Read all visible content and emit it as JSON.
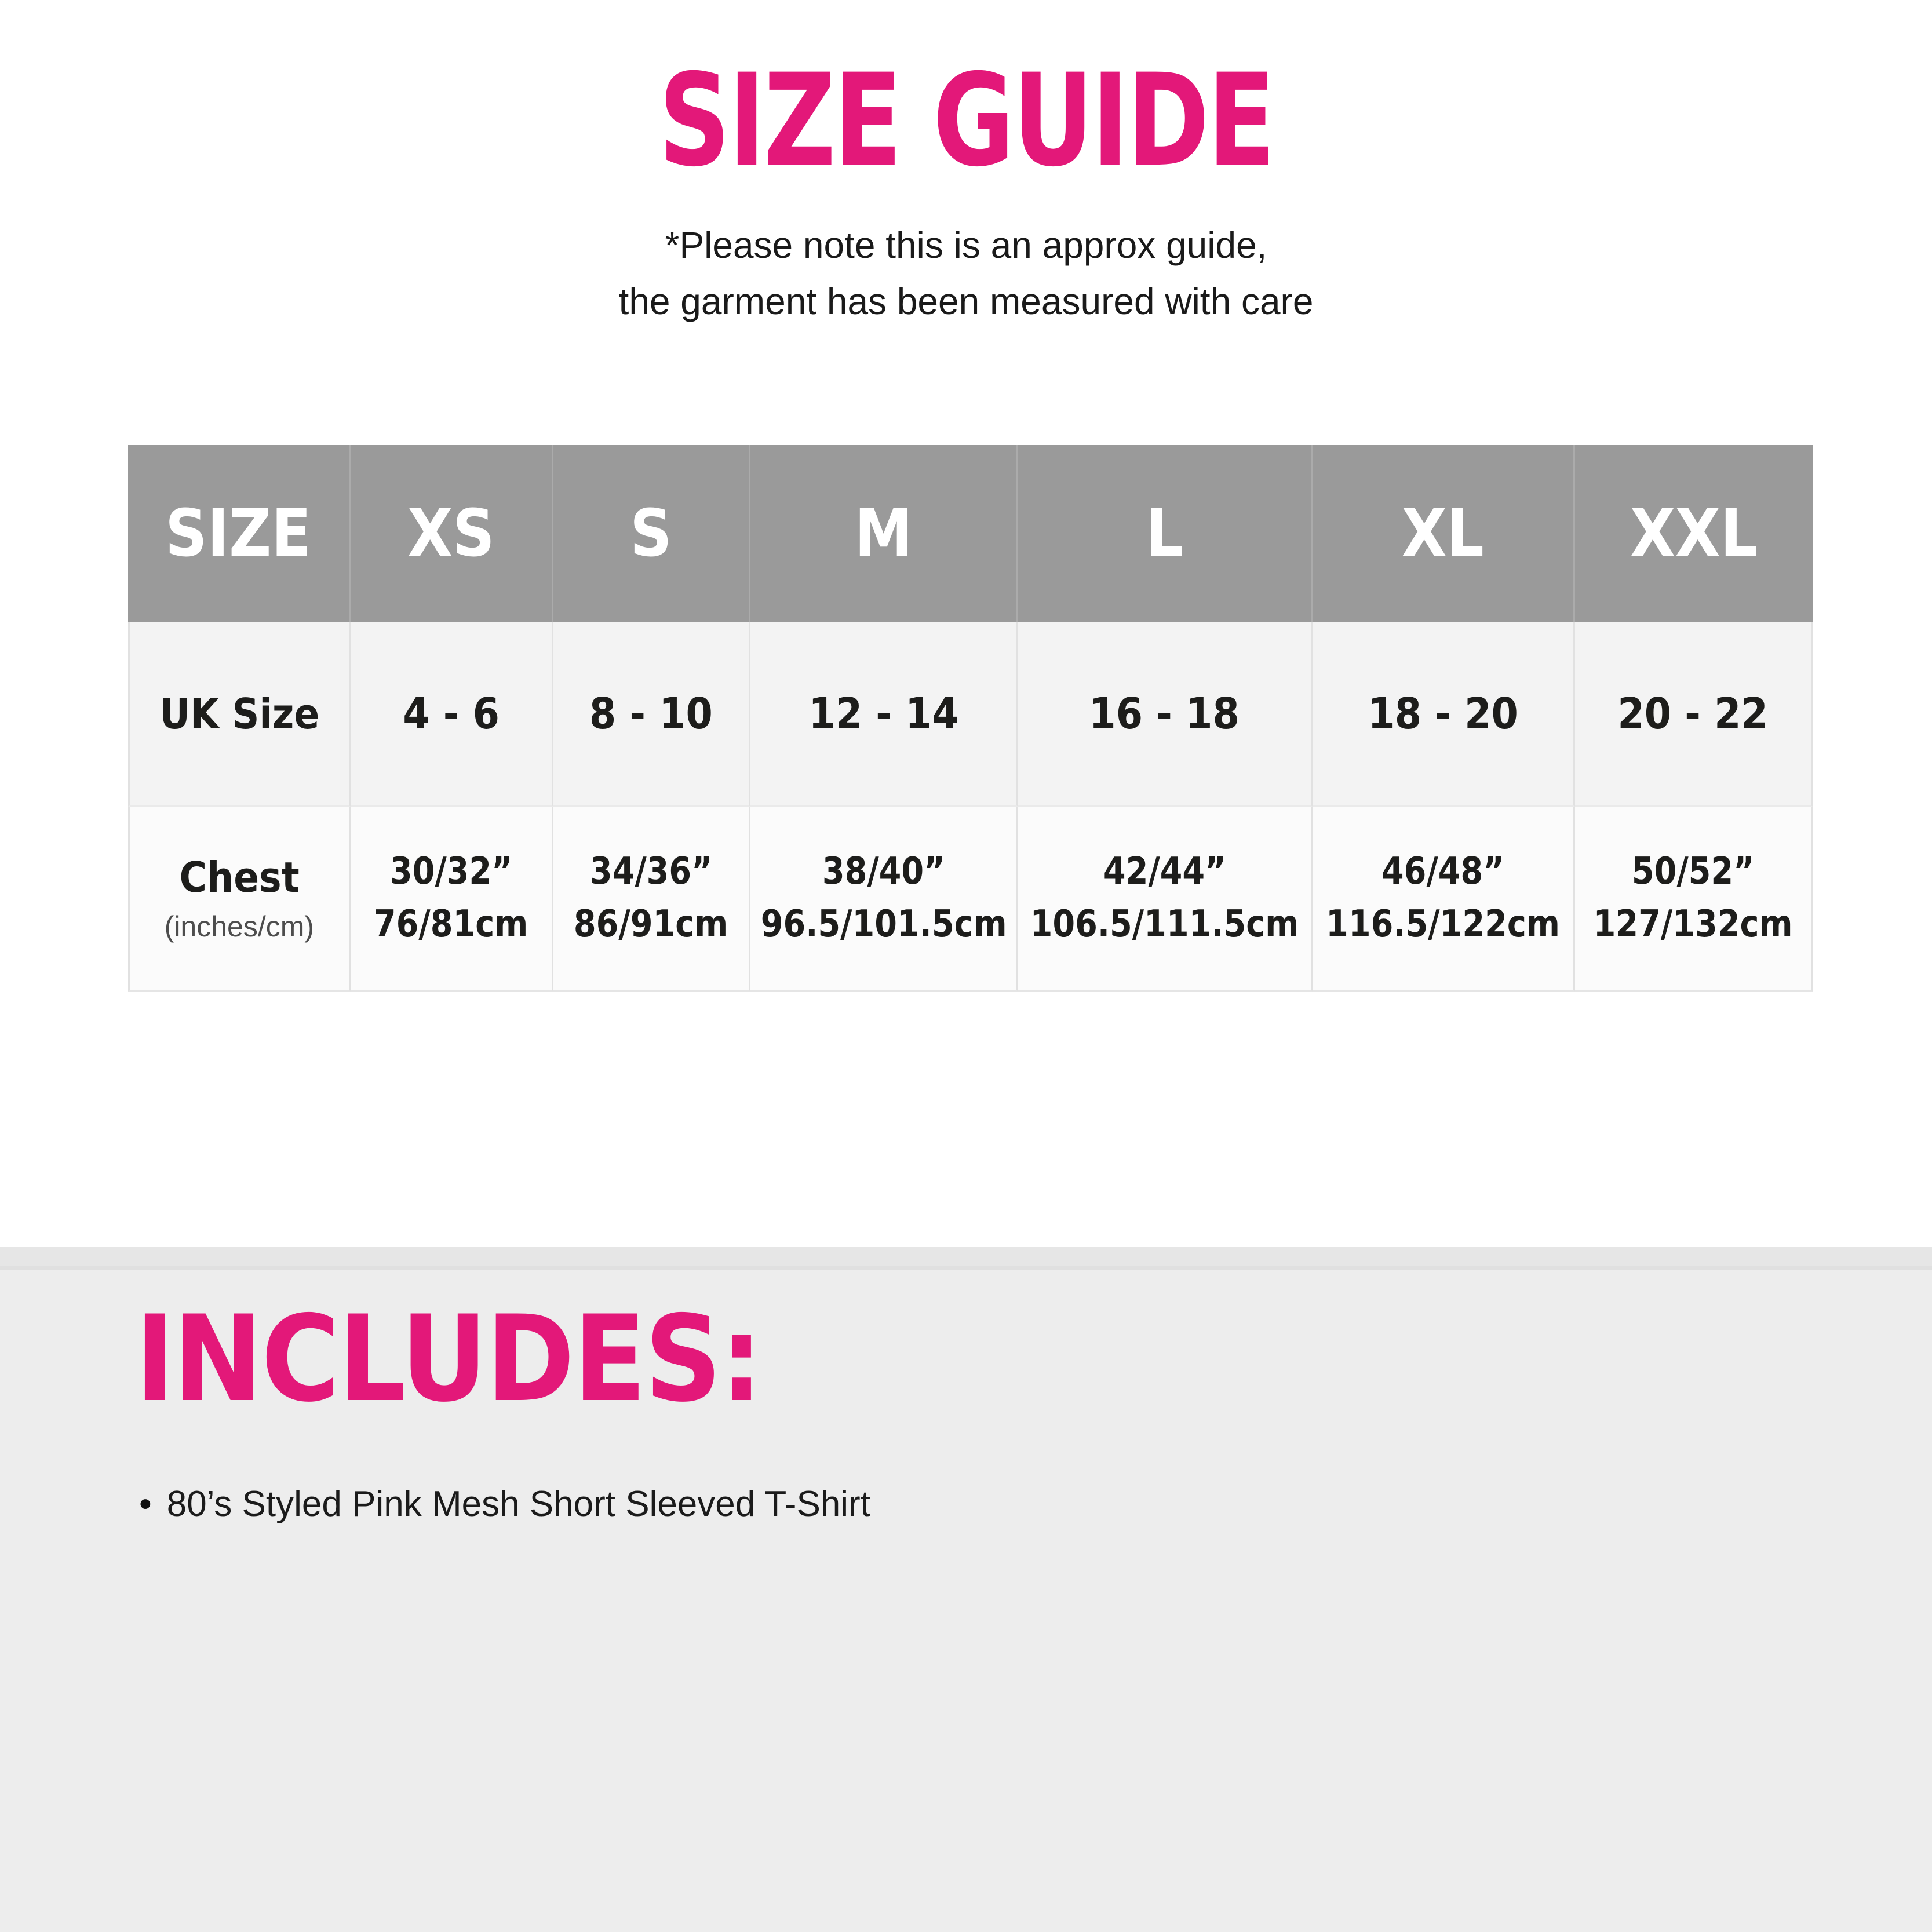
{
  "header": {
    "title": "SIZE GUIDE",
    "note_line1": "*Please note this is an approx guide,",
    "note_line2": "the garment has been measured with care"
  },
  "size_table": {
    "columns": [
      "SIZE",
      "XS",
      "S",
      "M",
      "L",
      "XL",
      "XXL"
    ],
    "uk_size_row": {
      "label": "UK Size",
      "values": [
        "4 - 6",
        "8 - 10",
        "12 - 14",
        "16 - 18",
        "18 - 20",
        "20 - 22"
      ]
    },
    "chest_row": {
      "label": "Chest",
      "unit_note": "(inches/cm)",
      "values": [
        {
          "inches": "30/32”",
          "cm": "76/81cm"
        },
        {
          "inches": "34/36”",
          "cm": "86/91cm"
        },
        {
          "inches": "38/40”",
          "cm": "96.5/101.5cm"
        },
        {
          "inches": "42/44”",
          "cm": "106.5/111.5cm"
        },
        {
          "inches": "46/48”",
          "cm": "116.5/122cm"
        },
        {
          "inches": "50/52”",
          "cm": "127/132cm"
        }
      ]
    }
  },
  "includes": {
    "heading": "INCLUDES:",
    "bullet": "•",
    "items": [
      "80’s Styled Pink Mesh Short Sleeved T-Shirt"
    ]
  },
  "colors": {
    "accent_pink": "#E31879",
    "table_header_bg": "#9A9A9A",
    "table_header_text": "#FFFFFF",
    "uk_size_row_bg": "#F3F3F3",
    "chest_row_bg": "#FBFBFB",
    "includes_section_bg": "#EDEDED",
    "body_text": "#1D1D1B"
  }
}
